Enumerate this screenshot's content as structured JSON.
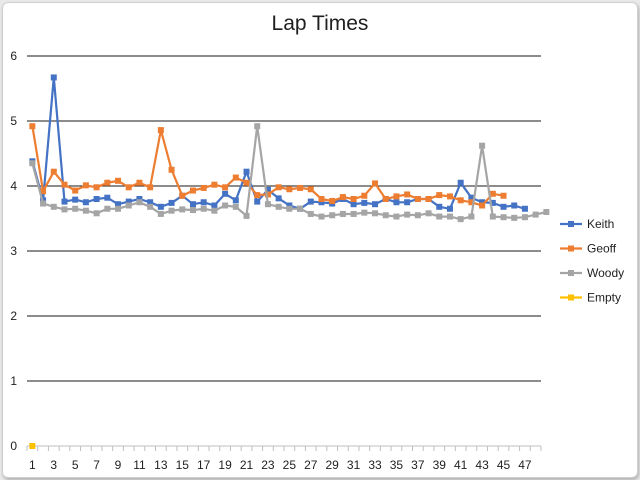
{
  "chart_data": {
    "type": "line",
    "title": "Lap Times",
    "xlabel": "",
    "ylabel": "",
    "ylim": [
      0,
      6
    ],
    "yticks": [
      0,
      1,
      2,
      3,
      4,
      5,
      6
    ],
    "x_max": 48,
    "x_labels": [
      1,
      3,
      5,
      7,
      9,
      11,
      13,
      15,
      17,
      19,
      21,
      23,
      25,
      27,
      29,
      31,
      33,
      35,
      37,
      39,
      41,
      43,
      45,
      47
    ],
    "grid": true,
    "legend_position": "right",
    "series": [
      {
        "name": "Keith",
        "color": "#4472c4",
        "marker": "square",
        "x": [
          1,
          2,
          3,
          4,
          5,
          6,
          7,
          8,
          9,
          10,
          11,
          12,
          13,
          14,
          15,
          16,
          17,
          18,
          19,
          20,
          21,
          22,
          23,
          24,
          25,
          26,
          27,
          28,
          29,
          30,
          31,
          32,
          33,
          34,
          35,
          36,
          37,
          38,
          39,
          40,
          41,
          42,
          43,
          44,
          45,
          46,
          47
        ],
        "values": [
          4.38,
          3.78,
          5.67,
          3.76,
          3.79,
          3.75,
          3.8,
          3.82,
          3.72,
          3.76,
          3.8,
          3.75,
          3.68,
          3.74,
          3.85,
          3.72,
          3.75,
          3.7,
          3.88,
          3.78,
          4.22,
          3.76,
          3.94,
          3.81,
          3.7,
          3.65,
          3.76,
          3.75,
          3.73,
          3.8,
          3.72,
          3.74,
          3.72,
          3.8,
          3.75,
          3.75,
          3.8,
          3.8,
          3.68,
          3.65,
          4.05,
          3.82,
          3.75,
          3.74,
          3.68,
          3.7,
          3.65
        ]
      },
      {
        "name": "Geoff",
        "color": "#ed7d31",
        "marker": "square",
        "x": [
          1,
          2,
          3,
          4,
          5,
          6,
          7,
          8,
          9,
          10,
          11,
          12,
          13,
          14,
          15,
          16,
          17,
          18,
          19,
          20,
          21,
          22,
          23,
          24,
          25,
          26,
          27,
          28,
          29,
          30,
          31,
          32,
          33,
          34,
          35,
          36,
          37,
          38,
          39,
          40,
          41,
          42,
          43,
          44,
          45
        ],
        "values": [
          4.92,
          3.92,
          4.22,
          4.02,
          3.93,
          4.01,
          3.98,
          4.05,
          4.08,
          3.98,
          4.05,
          3.98,
          4.86,
          4.25,
          3.85,
          3.93,
          3.97,
          4.02,
          3.98,
          4.13,
          4.05,
          3.86,
          3.87,
          3.98,
          3.95,
          3.97,
          3.95,
          3.8,
          3.77,
          3.83,
          3.8,
          3.85,
          4.04,
          3.8,
          3.84,
          3.87,
          3.8,
          3.8,
          3.86,
          3.84,
          3.78,
          3.75,
          3.7,
          3.88,
          3.85
        ]
      },
      {
        "name": "Woody",
        "color": "#a5a5a5",
        "marker": "square",
        "x": [
          1,
          2,
          3,
          4,
          5,
          6,
          7,
          8,
          9,
          10,
          11,
          12,
          13,
          14,
          15,
          16,
          17,
          18,
          19,
          20,
          21,
          22,
          23,
          24,
          25,
          26,
          27,
          28,
          29,
          30,
          31,
          32,
          33,
          34,
          35,
          36,
          37,
          38,
          39,
          40,
          41,
          42,
          43,
          44,
          45,
          46,
          47,
          48,
          49
        ],
        "values": [
          4.35,
          3.73,
          3.68,
          3.64,
          3.65,
          3.62,
          3.58,
          3.65,
          3.65,
          3.7,
          3.75,
          3.68,
          3.57,
          3.62,
          3.64,
          3.63,
          3.65,
          3.62,
          3.7,
          3.68,
          3.54,
          4.92,
          3.72,
          3.68,
          3.65,
          3.65,
          3.57,
          3.53,
          3.55,
          3.57,
          3.57,
          3.59,
          3.58,
          3.55,
          3.53,
          3.56,
          3.55,
          3.58,
          3.53,
          3.53,
          3.49,
          3.53,
          4.62,
          3.53,
          3.52,
          3.51,
          3.52,
          3.56,
          3.6
        ]
      },
      {
        "name": "Empty",
        "color": "#ffc000",
        "marker": "square",
        "x": [
          1
        ],
        "values": [
          0
        ]
      }
    ]
  }
}
